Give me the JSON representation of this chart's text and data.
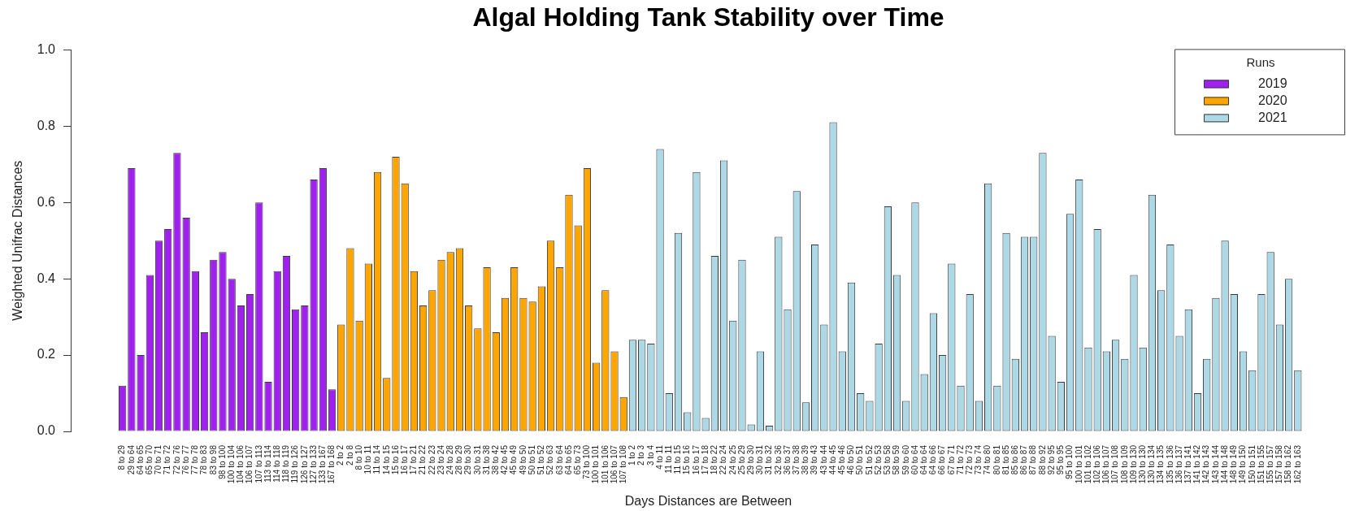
{
  "chart_data": {
    "type": "bar",
    "title": "Algal Holding Tank Stability over Time",
    "xlabel": "Days Distances are Between",
    "ylabel": "Weighted Unifrac Distances",
    "legend_title": "Runs",
    "legend": "top right",
    "grid": false,
    "categories": [
      "8 to 29",
      "29 to 64",
      "64 to 65",
      "65 to 70",
      "70 to 71",
      "71 to 72",
      "72 to 76",
      "76 to 77",
      "77 to 78",
      "78 to 83",
      "83 to 98",
      "98 to 100",
      "100 to 104",
      "104 to 106",
      "106 to 107",
      "107 to 113",
      "113 to 114",
      "114 to 118",
      "118 to 119",
      "119 to 126",
      "126 to 127",
      "127 to 133",
      "133 to 167",
      "167 to 168",
      "2 to 2",
      "2 to 8",
      "8 to 10",
      "10 to 11",
      "11 to 14",
      "14 to 15",
      "15 to 16",
      "16 to 17",
      "17 to 21",
      "21 to 22",
      "22 to 23",
      "23 to 24",
      "24 to 28",
      "28 to 29",
      "29 to 30",
      "30 to 31",
      "31 to 38",
      "38 to 42",
      "42 to 45",
      "45 to 49",
      "49 to 50",
      "50 to 51",
      "51 to 52",
      "52 to 63",
      "63 to 64",
      "64 to 65",
      "65 to 73",
      "73 to 100",
      "100 to 101",
      "101 to 106",
      "106 to 107",
      "107 to 108",
      "1 to 2",
      "2 to 3",
      "3 to 4",
      "4 to 11",
      "11 to 11",
      "11 to 15",
      "15 to 16",
      "16 to 17",
      "17 to 18",
      "18 to 22",
      "22 to 24",
      "24 to 25",
      "25 to 29",
      "29 to 30",
      "30 to 31",
      "31 to 32",
      "32 to 36",
      "36 to 37",
      "37 to 38",
      "38 to 39",
      "39 to 43",
      "43 to 44",
      "44 to 45",
      "45 to 46",
      "46 to 50",
      "50 to 51",
      "51 to 52",
      "52 to 53",
      "53 to 58",
      "58 to 59",
      "59 to 60",
      "60 to 64",
      "64 to 64",
      "64 to 66",
      "66 to 67",
      "67 to 71",
      "71 to 72",
      "72 to 73",
      "73 to 74",
      "74 to 80",
      "80 to 81",
      "81 to 85",
      "85 to 86",
      "86 to 87",
      "87 to 88",
      "88 to 92",
      "92 to 95",
      "95 to 95",
      "95 to 100",
      "100 to 101",
      "101 to 102",
      "102 to 106",
      "106 to 107",
      "107 to 108",
      "108 to 109",
      "109 to 130",
      "130 to 130",
      "130 to 134",
      "134 to 135",
      "135 to 136",
      "136 to 137",
      "137 to 141",
      "141 to 142",
      "142 to 143",
      "143 to 144",
      "144 to 148",
      "148 to 149",
      "149 to 150",
      "150 to 151",
      "151 to 155",
      "155 to 157",
      "157 to 158",
      "158 to 162",
      "162 to 163"
    ],
    "series": [
      {
        "name": "2019",
        "color": "#a020f0",
        "values": [
          0.12,
          0.69,
          0.2,
          0.41,
          0.5,
          0.53,
          0.73,
          0.56,
          0.42,
          0.26,
          0.45,
          0.47,
          0.4,
          0.33,
          0.36,
          0.6,
          0.13,
          0.42,
          0.46,
          0.32,
          0.33,
          0.66,
          0.69,
          0.11,
          null,
          null,
          null,
          null,
          null,
          null,
          null,
          null,
          null,
          null,
          null,
          null,
          null,
          null,
          null,
          null,
          null,
          null,
          null,
          null,
          null,
          null,
          null,
          null,
          null,
          null,
          null,
          null,
          null,
          null,
          null,
          null,
          null,
          null,
          null,
          null,
          null,
          null,
          null,
          null,
          null,
          null,
          null,
          null,
          null,
          null,
          null,
          null,
          null,
          null,
          null,
          null,
          null,
          null,
          null,
          null,
          null,
          null,
          null,
          null,
          null,
          null,
          null,
          null,
          null,
          null,
          null,
          null,
          null,
          null,
          null,
          null,
          null,
          null,
          null,
          null,
          null,
          null,
          null,
          null,
          null,
          null,
          null,
          null,
          null,
          null,
          null,
          null,
          null,
          null,
          null,
          null,
          null,
          null,
          null,
          null,
          null,
          null,
          null,
          null,
          null,
          null,
          null,
          null,
          null,
          null
        ]
      },
      {
        "name": "2020",
        "color": "#ffa500",
        "values": [
          null,
          null,
          null,
          null,
          null,
          null,
          null,
          null,
          null,
          null,
          null,
          null,
          null,
          null,
          null,
          null,
          null,
          null,
          null,
          null,
          null,
          null,
          null,
          null,
          0.28,
          0.48,
          0.29,
          0.44,
          0.68,
          0.14,
          0.72,
          0.65,
          0.42,
          0.33,
          0.37,
          0.45,
          0.47,
          0.48,
          0.33,
          0.27,
          0.43,
          0.26,
          0.35,
          0.43,
          0.35,
          0.34,
          0.38,
          0.5,
          0.43,
          0.62,
          0.54,
          0.69,
          0.18,
          0.37,
          0.21,
          0.09,
          null,
          null,
          null,
          null,
          null,
          null,
          null,
          null,
          null,
          null,
          null,
          null,
          null,
          null,
          null,
          null,
          null,
          null,
          null,
          null,
          null,
          null,
          null,
          null,
          null,
          null,
          null,
          null,
          null,
          null,
          null,
          null,
          null,
          null,
          null,
          null,
          null,
          null,
          null,
          null,
          null,
          null,
          null,
          null,
          null,
          null,
          null,
          null,
          null,
          null,
          null,
          null,
          null,
          null,
          null,
          null,
          null,
          null,
          null,
          null,
          null,
          null,
          null,
          null,
          null,
          null,
          null,
          null,
          null,
          null,
          null,
          null,
          null,
          null
        ]
      },
      {
        "name": "2021",
        "color": "#add8e6",
        "values": [
          null,
          null,
          null,
          null,
          null,
          null,
          null,
          null,
          null,
          null,
          null,
          null,
          null,
          null,
          null,
          null,
          null,
          null,
          null,
          null,
          null,
          null,
          null,
          null,
          null,
          null,
          null,
          null,
          null,
          null,
          null,
          null,
          null,
          null,
          null,
          null,
          null,
          null,
          null,
          null,
          null,
          null,
          null,
          null,
          null,
          null,
          null,
          null,
          null,
          null,
          null,
          null,
          null,
          null,
          null,
          null,
          0.24,
          0.24,
          0.23,
          0.74,
          0.1,
          0.52,
          0.05,
          0.68,
          0.035,
          0.46,
          0.71,
          0.29,
          0.45,
          0.018,
          0.21,
          0.015,
          0.51,
          0.32,
          0.63,
          0.076,
          0.49,
          0.28,
          0.81,
          0.21,
          0.39,
          0.1,
          0.08,
          0.23,
          0.59,
          0.41,
          0.08,
          0.6,
          0.15,
          0.31,
          0.2,
          0.44,
          0.12,
          0.36,
          0.08,
          0.65,
          0.12,
          0.52,
          0.19,
          0.51,
          0.51,
          0.73,
          0.25,
          0.13,
          0.57,
          0.66,
          0.22,
          0.53,
          0.21,
          0.24,
          0.19,
          0.41,
          0.22,
          0.62,
          0.37,
          0.49,
          0.25,
          0.32,
          0.1,
          0.19,
          0.35,
          0.5,
          0.36,
          0.21,
          0.16,
          0.36,
          0.47,
          0.28,
          0.4,
          0.16
        ]
      }
    ],
    "ylim": [
      0,
      1
    ],
    "yticks": [
      {
        "value": 0,
        "label": "0.0"
      },
      0.2,
      0.4,
      0.6,
      0.8,
      {
        "value": 1,
        "label": "1.0"
      }
    ]
  }
}
